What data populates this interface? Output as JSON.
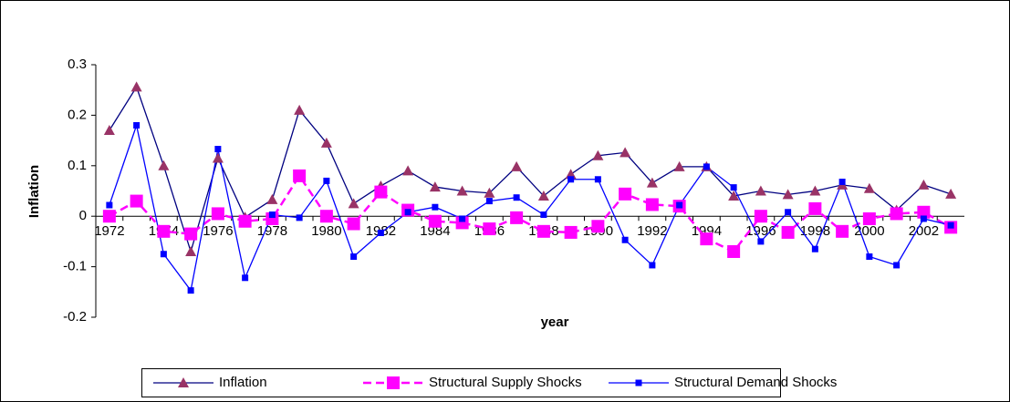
{
  "chart_data": {
    "type": "line",
    "xlabel": "year",
    "ylabel": "Inflation",
    "categories": [
      "1972",
      null,
      "1974",
      null,
      "1976",
      null,
      "1978",
      null,
      "1980",
      null,
      "1982",
      null,
      "1984",
      null,
      "1986",
      null,
      "1988",
      null,
      "1990",
      null,
      "1992",
      null,
      "1994",
      null,
      "1996",
      null,
      "1998",
      null,
      "2000",
      null,
      "2002",
      null
    ],
    "series": [
      {
        "name": "Inflation",
        "color": "#000080",
        "marker": "triangle",
        "marker_color": "#993366",
        "dashed": false,
        "values": [
          0.17,
          0.256,
          0.1,
          -0.07,
          0.115,
          -0.002,
          0.033,
          0.21,
          0.145,
          0.025,
          0.06,
          0.09,
          0.058,
          0.05,
          0.046,
          0.098,
          0.04,
          0.083,
          0.12,
          0.126,
          0.066,
          0.098,
          0.098,
          0.04,
          0.05,
          0.043,
          0.05,
          0.062,
          0.055,
          0.012,
          0.062,
          0.044
        ]
      },
      {
        "name": "Structural Supply Shocks",
        "color": "#ff00ff",
        "marker": "square",
        "marker_color": "#ff00ff",
        "dashed": true,
        "values": [
          0.0,
          0.03,
          -0.03,
          -0.035,
          0.005,
          -0.01,
          -0.005,
          0.08,
          0.0,
          -0.015,
          0.048,
          0.012,
          -0.01,
          -0.013,
          -0.025,
          -0.003,
          -0.03,
          -0.032,
          -0.02,
          0.044,
          0.023,
          0.02,
          -0.045,
          -0.07,
          0.0,
          -0.032,
          0.015,
          -0.03,
          -0.005,
          0.005,
          0.008,
          -0.022
        ]
      },
      {
        "name": "Structural Demand Shocks",
        "color": "#0000ff",
        "marker": "small-square",
        "marker_color": "#0000ff",
        "dashed": false,
        "values": [
          0.022,
          0.18,
          -0.075,
          -0.147,
          0.133,
          -0.122,
          0.003,
          -0.003,
          0.07,
          -0.08,
          -0.033,
          0.008,
          0.018,
          -0.005,
          0.03,
          0.037,
          0.003,
          0.073,
          0.073,
          -0.047,
          -0.097,
          0.022,
          0.098,
          0.057,
          -0.05,
          0.008,
          -0.065,
          0.068,
          -0.08,
          -0.097,
          -0.005,
          -0.018
        ]
      }
    ],
    "ylim": [
      -0.2,
      0.3
    ],
    "yticks": [
      -0.2,
      -0.1,
      0,
      0.1,
      0.2,
      0.3
    ],
    "grid": false,
    "legend": "bottom"
  }
}
